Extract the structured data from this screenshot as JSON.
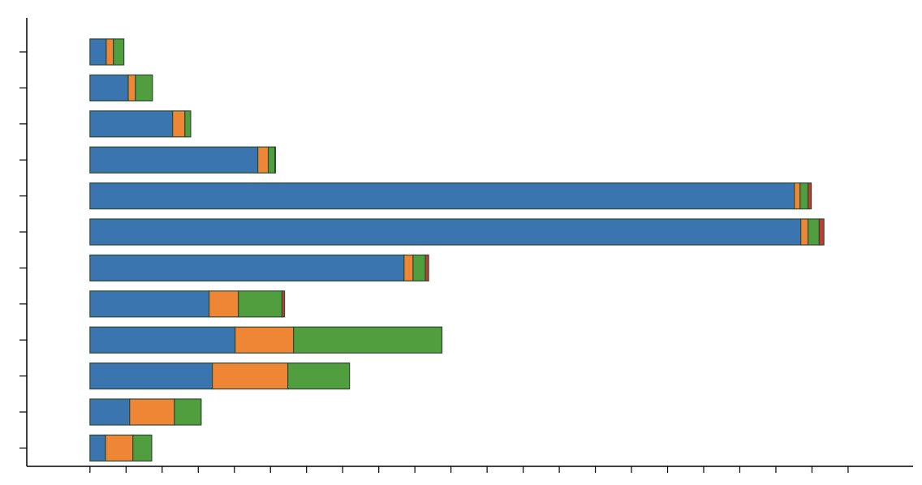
{
  "chart_data": {
    "type": "stacked-barh",
    "categories": [
      null,
      null,
      null,
      null,
      null,
      null,
      null,
      null,
      null,
      null,
      null,
      null
    ],
    "series": [
      {
        "color": "#3a75af",
        "values": [
          0.45,
          1.06,
          2.29,
          4.65,
          19.51,
          19.69,
          8.7,
          3.3,
          4.02,
          3.39,
          1.1,
          0.43
        ]
      },
      {
        "color": "#ef8636",
        "values": [
          0.2,
          0.2,
          0.34,
          0.29,
          0.16,
          0.2,
          0.25,
          0.81,
          1.62,
          2.09,
          1.24,
          0.76
        ]
      },
      {
        "color": "#519e3e",
        "values": [
          0.29,
          0.47,
          0.16,
          0.18,
          0.22,
          0.31,
          0.34,
          1.21,
          4.11,
          1.71,
          0.74,
          0.52
        ]
      },
      {
        "color": "#c53932",
        "values": [
          0,
          0,
          0,
          0.02,
          0.09,
          0.13,
          0.09,
          0.07,
          0,
          0,
          0,
          0
        ]
      }
    ],
    "xlim": [
      -1.75,
      22.8
    ],
    "xticks": [
      0,
      1,
      2,
      3,
      4,
      5,
      6,
      7,
      8,
      9,
      10,
      11,
      12,
      13,
      14,
      15,
      16,
      17,
      18,
      19,
      20,
      21
    ]
  }
}
